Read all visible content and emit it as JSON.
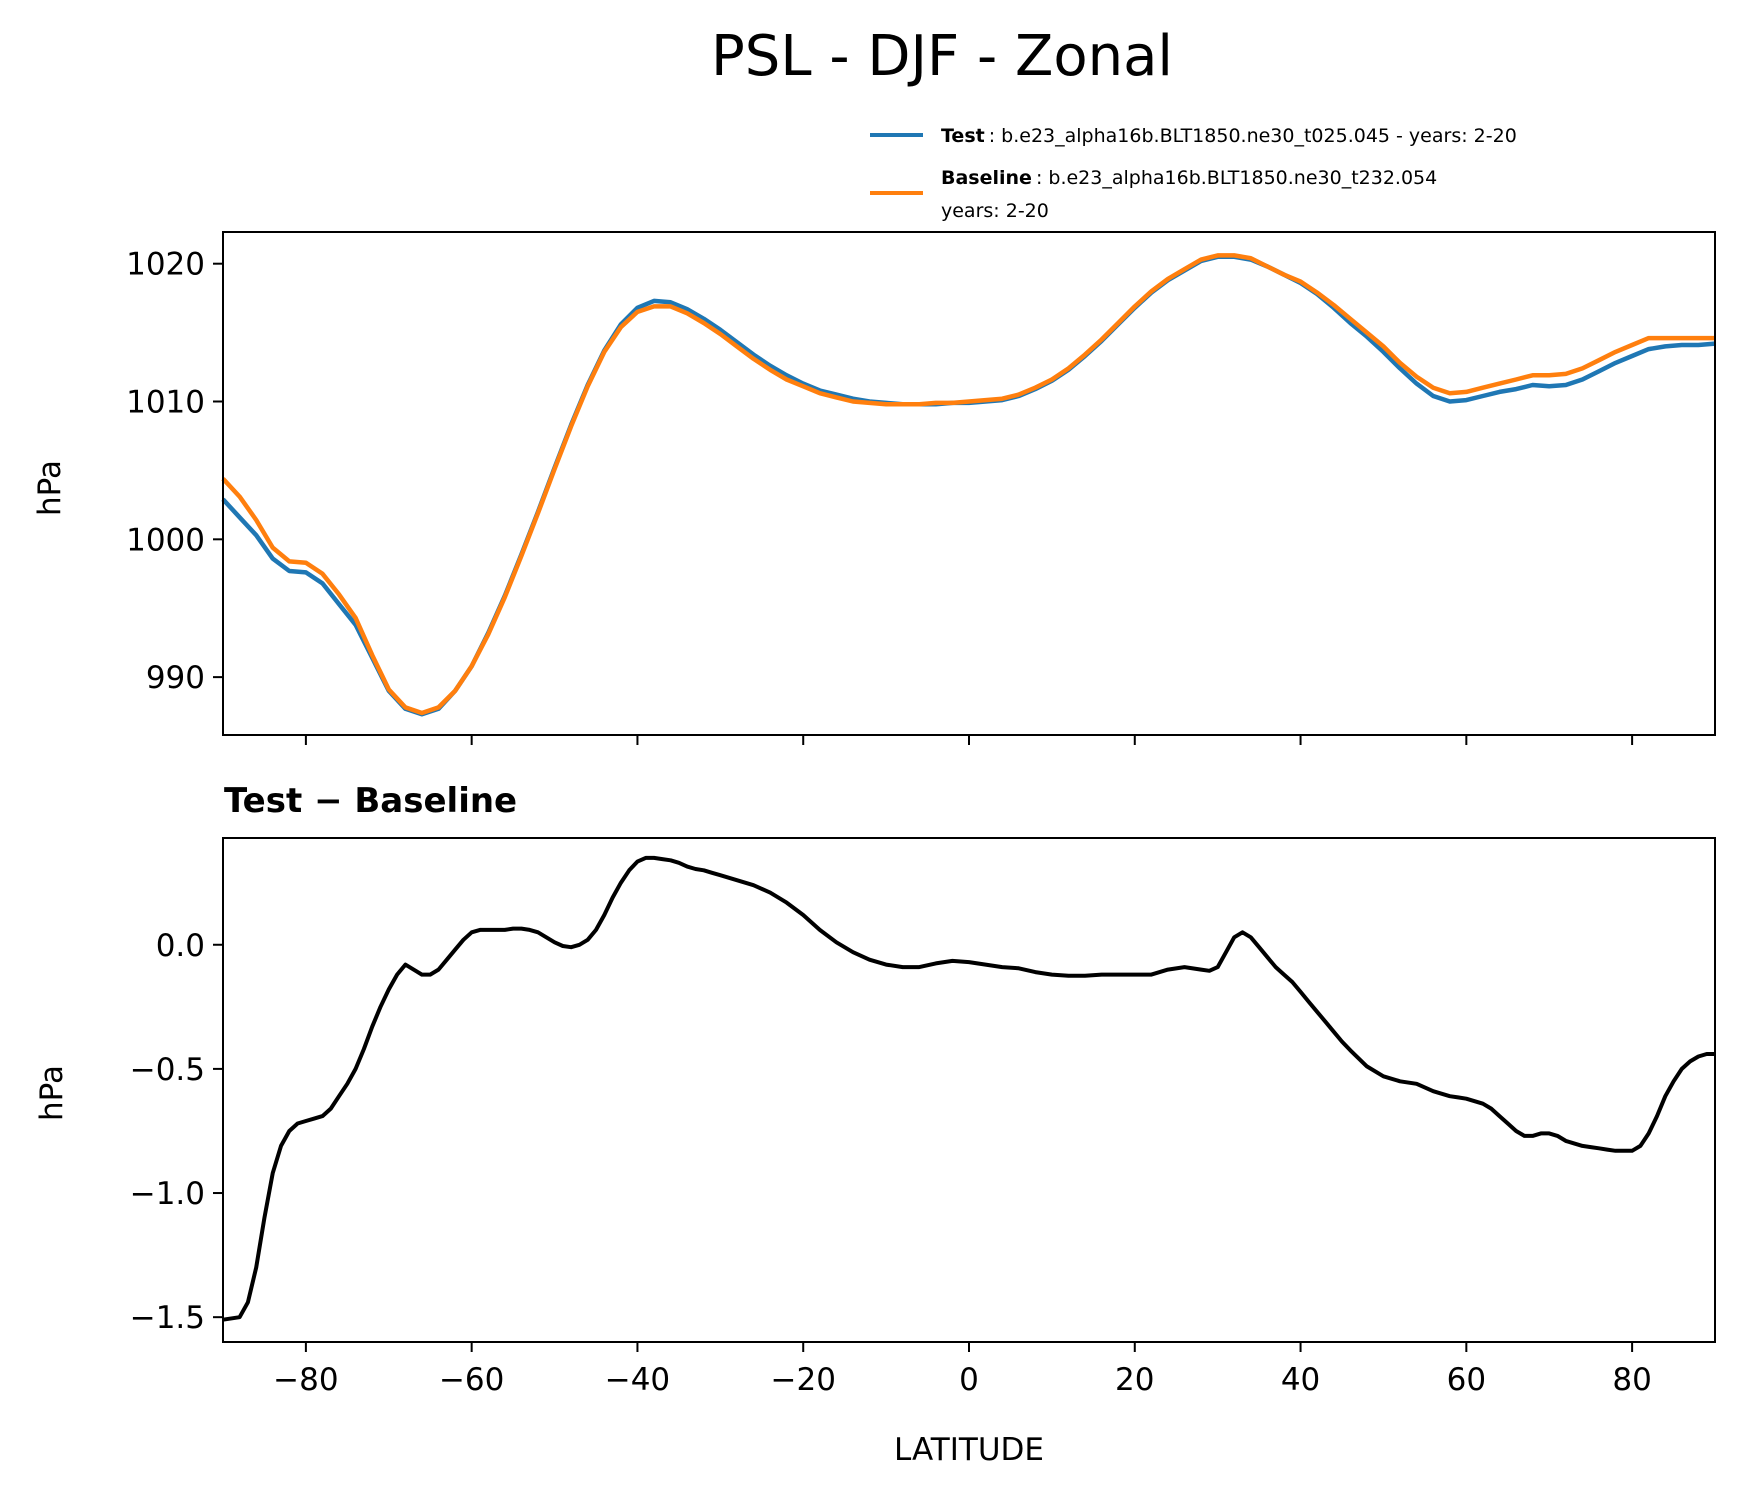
{
  "chart_data": [
    {
      "type": "line",
      "title": "PSL - DJF - Zonal",
      "xlabel": "",
      "ylabel": "hPa",
      "xlim": [
        -90,
        90
      ],
      "ylim": [
        985.8,
        1022.3
      ],
      "yticks": [
        990,
        1000,
        1010,
        1020
      ],
      "ytick_labels": [
        "990",
        "1000",
        "1010",
        "1020"
      ],
      "legend": {
        "placement": "above-top-right",
        "entries": [
          {
            "name": "Test",
            "text": ": b.e23_alpha16b.BLT1850.ne30_t025.045 - years: 2-20",
            "color": "#1f77b4"
          },
          {
            "name": "Baseline",
            "text": ": b.e23_alpha16b.BLT1850.ne30_t232.054",
            "text2": "years: 2-20",
            "color": "#ff7f0e"
          }
        ]
      },
      "series": [
        {
          "name": "Test",
          "color": "#1f77b4",
          "x": [
            -90,
            -88,
            -86,
            -84,
            -82,
            -80,
            -78,
            -76,
            -74,
            -72,
            -70,
            -68,
            -66,
            -64,
            -62,
            -60,
            -58,
            -56,
            -54,
            -52,
            -50,
            -48,
            -46,
            -44,
            -42,
            -40,
            -38,
            -36,
            -34,
            -32,
            -30,
            -28,
            -26,
            -24,
            -22,
            -20,
            -18,
            -16,
            -14,
            -12,
            -10,
            -8,
            -6,
            -4,
            -2,
            0,
            2,
            4,
            6,
            8,
            10,
            12,
            14,
            16,
            18,
            20,
            22,
            24,
            26,
            28,
            30,
            32,
            34,
            36,
            38,
            40,
            42,
            44,
            46,
            48,
            50,
            52,
            54,
            56,
            58,
            60,
            62,
            64,
            66,
            68,
            70,
            72,
            74,
            76,
            78,
            80,
            82,
            84,
            86,
            88,
            90
          ],
          "values": [
            1002.9,
            1001.6,
            1000.3,
            998.6,
            997.7,
            997.6,
            996.8,
            995.3,
            993.8,
            991.4,
            989.0,
            987.7,
            987.3,
            987.7,
            989.0,
            990.8,
            993.2,
            995.9,
            998.9,
            1002.0,
            1005.2,
            1008.3,
            1011.2,
            1013.7,
            1015.6,
            1016.8,
            1017.3,
            1017.2,
            1016.7,
            1016.0,
            1015.2,
            1014.3,
            1013.4,
            1012.6,
            1011.9,
            1011.3,
            1010.8,
            1010.5,
            1010.2,
            1010.0,
            1009.9,
            1009.8,
            1009.8,
            1009.8,
            1009.9,
            1009.9,
            1010.0,
            1010.1,
            1010.4,
            1010.9,
            1011.5,
            1012.3,
            1013.3,
            1014.4,
            1015.6,
            1016.8,
            1017.9,
            1018.8,
            1019.5,
            1020.2,
            1020.5,
            1020.5,
            1020.3,
            1019.8,
            1019.2,
            1018.6,
            1017.8,
            1016.8,
            1015.7,
            1014.7,
            1013.6,
            1012.4,
            1011.3,
            1010.4,
            1010.0,
            1010.1,
            1010.4,
            1010.7,
            1010.9,
            1011.2,
            1011.1,
            1011.2,
            1011.6,
            1012.2,
            1012.8,
            1013.3,
            1013.8,
            1014.0,
            1014.1,
            1014.1,
            1014.2
          ]
        },
        {
          "name": "Baseline",
          "color": "#ff7f0e",
          "x": [
            -90,
            -88,
            -86,
            -84,
            -82,
            -80,
            -78,
            -76,
            -74,
            -72,
            -70,
            -68,
            -66,
            -64,
            -62,
            -60,
            -58,
            -56,
            -54,
            -52,
            -50,
            -48,
            -46,
            -44,
            -42,
            -40,
            -38,
            -36,
            -34,
            -32,
            -30,
            -28,
            -26,
            -24,
            -22,
            -20,
            -18,
            -16,
            -14,
            -12,
            -10,
            -8,
            -6,
            -4,
            -2,
            0,
            2,
            4,
            6,
            8,
            10,
            12,
            14,
            16,
            18,
            20,
            22,
            24,
            26,
            28,
            30,
            32,
            34,
            36,
            38,
            40,
            42,
            44,
            46,
            48,
            50,
            52,
            54,
            56,
            58,
            60,
            62,
            64,
            66,
            68,
            70,
            72,
            74,
            76,
            78,
            80,
            82,
            84,
            86,
            88,
            90
          ],
          "values": [
            1004.4,
            1003.1,
            1001.4,
            999.4,
            998.4,
            998.3,
            997.5,
            996.0,
            994.3,
            991.6,
            989.1,
            987.8,
            987.4,
            987.8,
            989.0,
            990.8,
            993.1,
            995.8,
            998.8,
            1001.9,
            1005.1,
            1008.2,
            1011.1,
            1013.6,
            1015.4,
            1016.5,
            1016.9,
            1016.9,
            1016.4,
            1015.7,
            1014.9,
            1014.0,
            1013.1,
            1012.3,
            1011.6,
            1011.1,
            1010.6,
            1010.3,
            1010.0,
            1009.9,
            1009.8,
            1009.8,
            1009.8,
            1009.9,
            1009.9,
            1010.0,
            1010.1,
            1010.2,
            1010.5,
            1011.0,
            1011.6,
            1012.4,
            1013.4,
            1014.5,
            1015.7,
            1016.9,
            1018.0,
            1018.9,
            1019.6,
            1020.3,
            1020.6,
            1020.6,
            1020.4,
            1019.8,
            1019.2,
            1018.7,
            1017.9,
            1017.0,
            1016.0,
            1015.0,
            1014.0,
            1012.8,
            1011.8,
            1011.0,
            1010.6,
            1010.7,
            1011.0,
            1011.3,
            1011.6,
            1011.9,
            1011.9,
            1012.0,
            1012.4,
            1013.0,
            1013.6,
            1014.1,
            1014.6,
            1014.6,
            1014.6,
            1014.6,
            1014.6
          ]
        }
      ]
    },
    {
      "type": "line",
      "title": "Test − Baseline",
      "xlabel": "LATITUDE",
      "ylabel": "hPa",
      "xlim": [
        -90,
        90
      ],
      "ylim": [
        -1.6,
        0.43
      ],
      "yticks": [
        -1.5,
        -1.0,
        -0.5,
        0.0
      ],
      "ytick_labels": [
        "−1.5",
        "−1.0",
        "−0.5",
        "0.0"
      ],
      "xticks": [
        -80,
        -60,
        -40,
        -20,
        0,
        20,
        40,
        60,
        80
      ],
      "xtick_labels": [
        "−80",
        "−60",
        "−40",
        "−20",
        "0",
        "20",
        "40",
        "60",
        "80"
      ],
      "series": [
        {
          "name": "Test − Baseline",
          "color": "#000000",
          "x": [
            -90,
            -88,
            -87,
            -86,
            -85,
            -84,
            -83,
            -82,
            -81,
            -80,
            -79,
            -78,
            -77,
            -76,
            -75,
            -74,
            -73,
            -72,
            -71,
            -70,
            -69,
            -68,
            -67,
            -66,
            -65,
            -64,
            -63,
            -62,
            -61,
            -60,
            -59,
            -58,
            -57,
            -56,
            -55,
            -54,
            -53,
            -52,
            -51,
            -50,
            -49,
            -48,
            -47,
            -46,
            -45,
            -44,
            -43,
            -42,
            -41,
            -40,
            -39,
            -38,
            -37,
            -36,
            -35,
            -34,
            -33,
            -32,
            -31,
            -30,
            -29,
            -28,
            -26,
            -24,
            -22,
            -20,
            -18,
            -16,
            -14,
            -12,
            -10,
            -8,
            -6,
            -4,
            -2,
            0,
            2,
            4,
            6,
            8,
            10,
            12,
            14,
            16,
            18,
            20,
            22,
            24,
            26,
            28,
            29,
            30,
            31,
            32,
            33,
            34,
            35,
            36,
            37,
            38,
            39,
            40,
            41,
            42,
            43,
            44,
            45,
            46,
            48,
            50,
            52,
            54,
            56,
            58,
            59,
            60,
            61,
            62,
            63,
            64,
            65,
            66,
            67,
            68,
            69,
            70,
            71,
            72,
            73,
            74,
            75,
            76,
            77,
            78,
            79,
            80,
            81,
            82,
            83,
            84,
            85,
            86,
            87,
            88,
            89,
            90
          ],
          "values": [
            -1.51,
            -1.5,
            -1.44,
            -1.3,
            -1.1,
            -0.92,
            -0.81,
            -0.75,
            -0.72,
            -0.71,
            -0.7,
            -0.69,
            -0.66,
            -0.61,
            -0.56,
            -0.5,
            -0.42,
            -0.33,
            -0.25,
            -0.18,
            -0.12,
            -0.08,
            -0.1,
            -0.12,
            -0.12,
            -0.1,
            -0.06,
            -0.02,
            0.02,
            0.05,
            0.06,
            0.06,
            0.06,
            0.06,
            0.065,
            0.065,
            0.06,
            0.05,
            0.03,
            0.01,
            -0.005,
            -0.01,
            0.0,
            0.02,
            0.06,
            0.12,
            0.19,
            0.25,
            0.3,
            0.335,
            0.35,
            0.35,
            0.345,
            0.34,
            0.33,
            0.315,
            0.305,
            0.3,
            0.29,
            0.28,
            0.27,
            0.26,
            0.24,
            0.21,
            0.17,
            0.12,
            0.06,
            0.01,
            -0.03,
            -0.06,
            -0.08,
            -0.09,
            -0.09,
            -0.075,
            -0.065,
            -0.07,
            -0.08,
            -0.09,
            -0.095,
            -0.11,
            -0.12,
            -0.125,
            -0.125,
            -0.12,
            -0.12,
            -0.12,
            -0.12,
            -0.1,
            -0.09,
            -0.1,
            -0.105,
            -0.09,
            -0.03,
            0.03,
            0.05,
            0.03,
            -0.01,
            -0.05,
            -0.09,
            -0.12,
            -0.15,
            -0.19,
            -0.23,
            -0.27,
            -0.31,
            -0.35,
            -0.39,
            -0.425,
            -0.49,
            -0.53,
            -0.55,
            -0.56,
            -0.59,
            -0.61,
            -0.615,
            -0.62,
            -0.63,
            -0.64,
            -0.66,
            -0.69,
            -0.72,
            -0.75,
            -0.77,
            -0.77,
            -0.76,
            -0.76,
            -0.77,
            -0.79,
            -0.8,
            -0.81,
            -0.815,
            -0.82,
            -0.825,
            -0.83,
            -0.83,
            -0.83,
            -0.81,
            -0.76,
            -0.69,
            -0.61,
            -0.55,
            -0.5,
            -0.47,
            -0.45,
            -0.44,
            -0.44
          ]
        }
      ]
    }
  ]
}
